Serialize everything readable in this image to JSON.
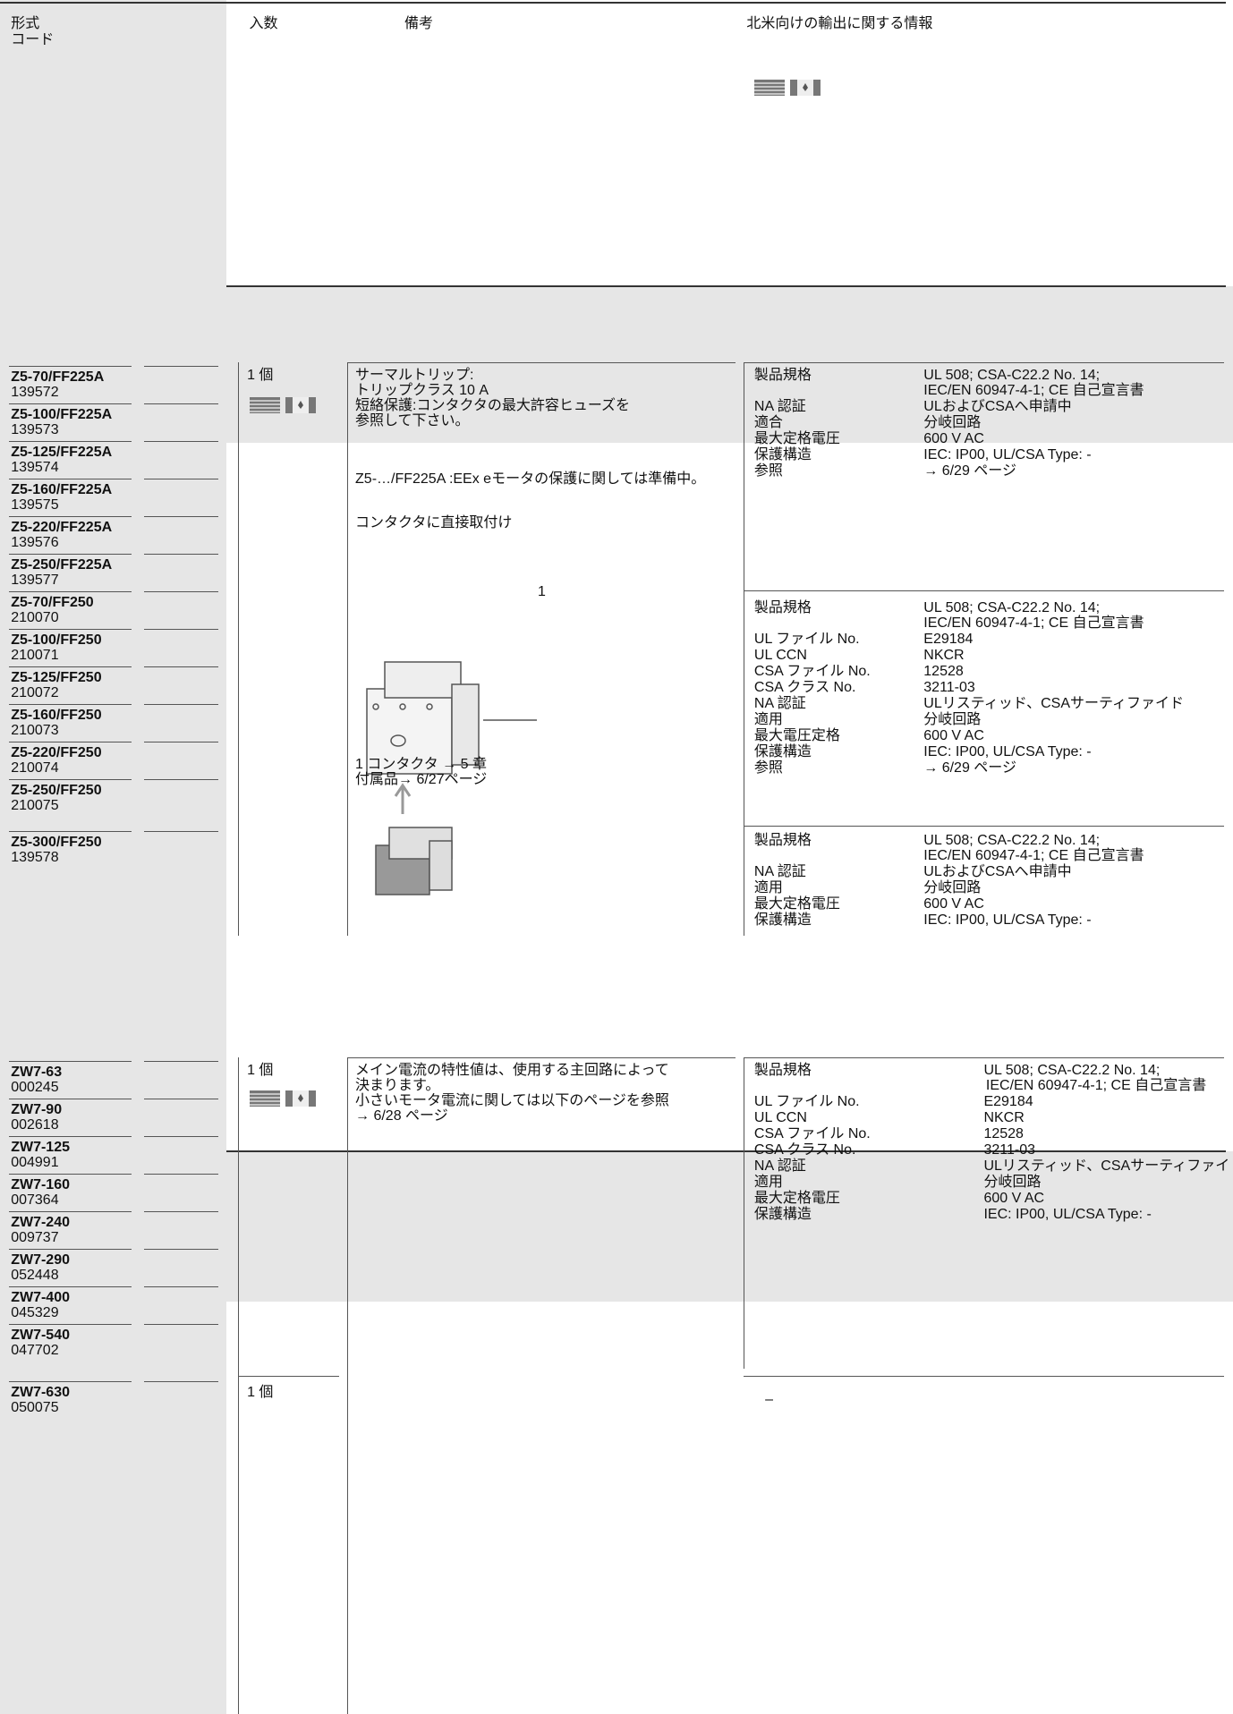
{
  "header": {
    "type_code": [
      "形式",
      "コード"
    ],
    "quantity": "入数",
    "remarks": "備考",
    "na_info": "北米向けの輸出に関する情報"
  },
  "sections": [
    {
      "products": [
        {
          "type": "Z5-70/FF225A",
          "code": "139572"
        },
        {
          "type": "Z5-100/FF225A",
          "code": "139573"
        },
        {
          "type": "Z5-125/FF225A",
          "code": "139574"
        },
        {
          "type": "Z5-160/FF225A",
          "code": "139575"
        },
        {
          "type": "Z5-220/FF225A",
          "code": "139576"
        },
        {
          "type": "Z5-250/FF225A",
          "code": "139577"
        },
        {
          "type": "Z5-70/FF250",
          "code": "210070"
        },
        {
          "type": "Z5-100/FF250",
          "code": "210071"
        },
        {
          "type": "Z5-125/FF250",
          "code": "210072"
        },
        {
          "type": "Z5-160/FF250",
          "code": "210073"
        },
        {
          "type": "Z5-220/FF250",
          "code": "210074"
        },
        {
          "type": "Z5-250/FF250",
          "code": "210075"
        },
        {
          "type": "Z5-300/FF250",
          "code": "139578"
        }
      ],
      "quantity": "1 個",
      "remarks": [
        [
          "サーマルトリップ:",
          "トリップクラス 10 A",
          "短絡保護:コンタクタの最大許容ヒューズを",
          "参照して下さい。"
        ],
        [
          "Z5-…/FF225A :EEx eモータの保護に関しては準備中。"
        ],
        [
          "コンタクタに直接取付け"
        ]
      ],
      "figure_label": "1",
      "figure_notes": [
        "1 コンタクタ → 5 章",
        "付属品→ 6/27ページ"
      ],
      "approvals": [
        [
          {
            "label": "製品規格",
            "value": [
              "UL 508; CSA-C22.2 No. 14;",
              "IEC/EN 60947-4-1; CE 自己宣言書"
            ]
          },
          {
            "label": "NA 認証",
            "value": [
              "ULおよびCSAへ申請中"
            ]
          },
          {
            "label": "適合",
            "value": [
              "分岐回路"
            ]
          },
          {
            "label": "最大定格電圧",
            "value": [
              "600 V AC"
            ]
          },
          {
            "label": "保護構造",
            "value": [
              "IEC: IP00, UL/CSA Type: -"
            ]
          },
          {
            "label": "参照",
            "value": [
              "→ 6/29 ページ"
            ]
          }
        ],
        [
          {
            "label": "製品規格",
            "value": [
              "UL 508; CSA-C22.2 No. 14;",
              "IEC/EN 60947-4-1; CE 自己宣言書"
            ]
          },
          {
            "label": "UL ファイル No.",
            "value": [
              "E29184"
            ]
          },
          {
            "label": "UL CCN",
            "value": [
              "NKCR"
            ]
          },
          {
            "label": "CSA ファイル No.",
            "value": [
              "12528"
            ]
          },
          {
            "label": "CSA クラス No.",
            "value": [
              "3211-03"
            ]
          },
          {
            "label": "NA 認証",
            "value": [
              "ULリスティッド、CSAサーティファイド"
            ]
          },
          {
            "label": "適用",
            "value": [
              "分岐回路"
            ]
          },
          {
            "label": "最大電圧定格",
            "value": [
              "600 V AC"
            ]
          },
          {
            "label": "保護構造",
            "value": [
              "IEC: IP00, UL/CSA Type: -"
            ]
          },
          {
            "label": "参照",
            "value": [
              "→ 6/29 ページ"
            ]
          }
        ],
        [
          {
            "label": "製品規格",
            "value": [
              "UL 508; CSA-C22.2 No. 14;",
              "IEC/EN 60947-4-1; CE 自己宣言書"
            ]
          },
          {
            "label": "NA 認証",
            "value": [
              "ULおよびCSAへ申請中"
            ]
          },
          {
            "label": "適用",
            "value": [
              "分岐回路"
            ]
          },
          {
            "label": "最大定格電圧",
            "value": [
              "600 V AC"
            ]
          },
          {
            "label": "保護構造",
            "value": [
              "IEC: IP00, UL/CSA Type: -"
            ]
          }
        ]
      ]
    },
    {
      "products": [
        {
          "type": "ZW7-63",
          "code": "000245"
        },
        {
          "type": "ZW7-90",
          "code": "002618"
        },
        {
          "type": "ZW7-125",
          "code": "004991"
        },
        {
          "type": "ZW7-160",
          "code": "007364"
        },
        {
          "type": "ZW7-240",
          "code": "009737"
        },
        {
          "type": "ZW7-290",
          "code": "052448"
        },
        {
          "type": "ZW7-400",
          "code": "045329"
        },
        {
          "type": "ZW7-540",
          "code": "047702"
        }
      ],
      "quantity": "1 個",
      "remarks": [
        [
          "メイン電流の特性値は、使用する主回路によって",
          "決まります。",
          "小さいモータ電流に関しては以下のページを参照",
          "→ 6/28 ページ"
        ]
      ],
      "approvals": [
        [
          {
            "label": "製品規格",
            "value": [
              "UL 508; CSA-C22.2 No. 14;",
              "IEC/EN 60947-4-1; CE 自己宣言書"
            ]
          },
          {
            "label": "UL ファイル No.",
            "value": [
              "E29184"
            ]
          },
          {
            "label": "UL CCN",
            "value": [
              "NKCR"
            ]
          },
          {
            "label": "CSA ファイル No.",
            "value": [
              "12528"
            ]
          },
          {
            "label": "CSA クラス No.",
            "value": [
              "3211-03"
            ]
          },
          {
            "label": "NA 認証",
            "value": [
              "ULリスティッド、CSAサーティファイド"
            ]
          },
          {
            "label": "適用",
            "value": [
              "分岐回路"
            ]
          },
          {
            "label": "最大定格電圧",
            "value": [
              "600 V AC"
            ]
          },
          {
            "label": "保護構造",
            "value": [
              "IEC: IP00, UL/CSA Type: -"
            ]
          }
        ]
      ],
      "extra": {
        "type": "ZW7-630",
        "code": "050075",
        "quantity": "1 個",
        "na_info": "–"
      }
    }
  ]
}
